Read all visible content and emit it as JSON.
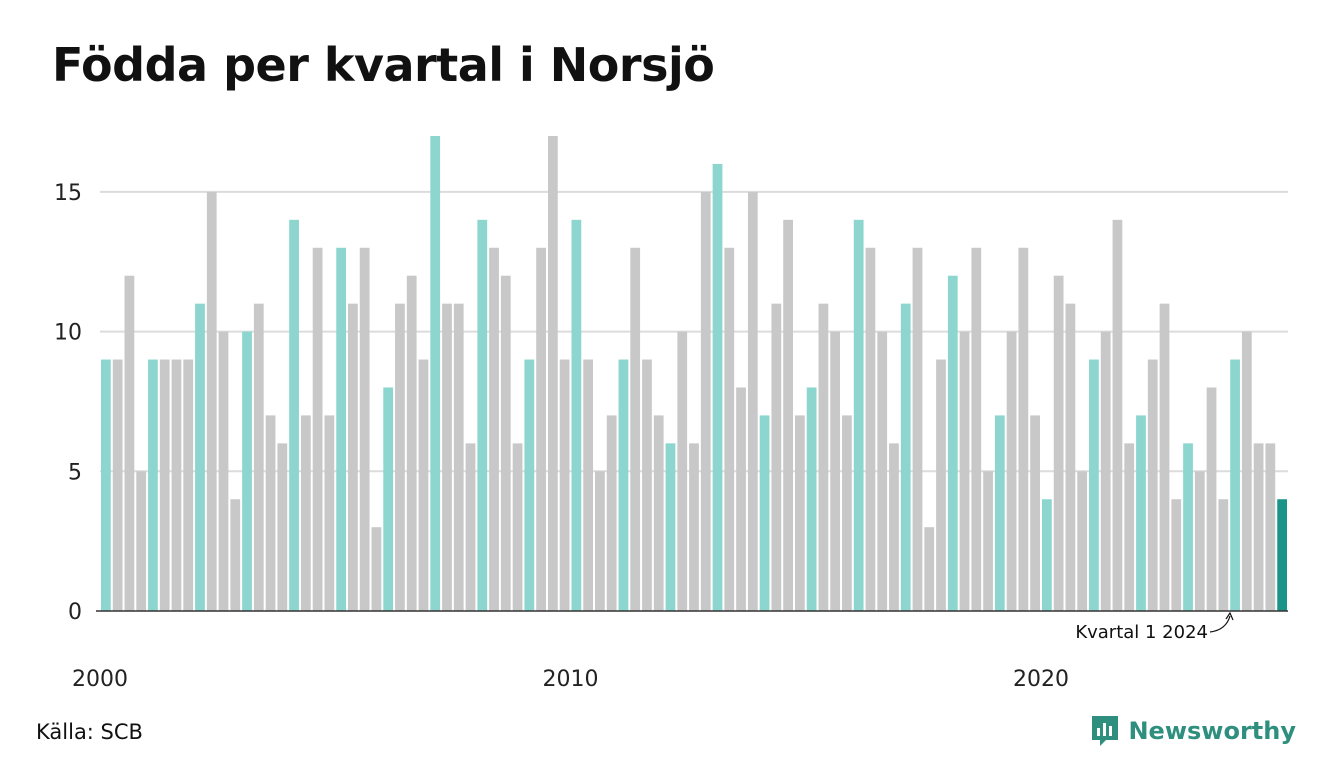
{
  "header": {
    "title": "Födda per kvartal i Norsjö"
  },
  "footer": {
    "source": "Källa: SCB",
    "brand": "Newsworthy"
  },
  "colors": {
    "q1": "#8cd6cf",
    "other": "#c8c8c8",
    "latest": "#1a9488",
    "grid": "#dcdcdc",
    "axis": "#333333"
  },
  "chart_data": {
    "type": "bar",
    "title": "Födda per kvartal i Norsjö",
    "start": {
      "year": 2000,
      "quarter": 1
    },
    "values": [
      9,
      9,
      12,
      5,
      9,
      9,
      9,
      9,
      11,
      15,
      10,
      4,
      10,
      11,
      7,
      6,
      14,
      7,
      13,
      7,
      13,
      11,
      13,
      3,
      8,
      11,
      12,
      9,
      17,
      11,
      11,
      6,
      14,
      13,
      12,
      6,
      9,
      13,
      17,
      9,
      14,
      9,
      5,
      7,
      9,
      13,
      9,
      7,
      6,
      10,
      6,
      15,
      16,
      13,
      8,
      15,
      7,
      11,
      14,
      7,
      8,
      11,
      10,
      7,
      14,
      13,
      10,
      6,
      11,
      13,
      3,
      9,
      12,
      10,
      13,
      5,
      7,
      10,
      13,
      7,
      4,
      12,
      11,
      5,
      9,
      10,
      14,
      6,
      7,
      9,
      11,
      4,
      6,
      5,
      8,
      4,
      9,
      10,
      6,
      6,
      4
    ],
    "y_ticks": [
      0,
      5,
      10,
      15
    ],
    "ylim": [
      0,
      17
    ],
    "x_tick_labels": [
      {
        "label": "2000",
        "year": 2000
      },
      {
        "label": "2010",
        "year": 2010
      },
      {
        "label": "2020",
        "year": 2020
      }
    ],
    "annotation": {
      "text": "Kvartal 1 2024"
    },
    "grid": true
  }
}
